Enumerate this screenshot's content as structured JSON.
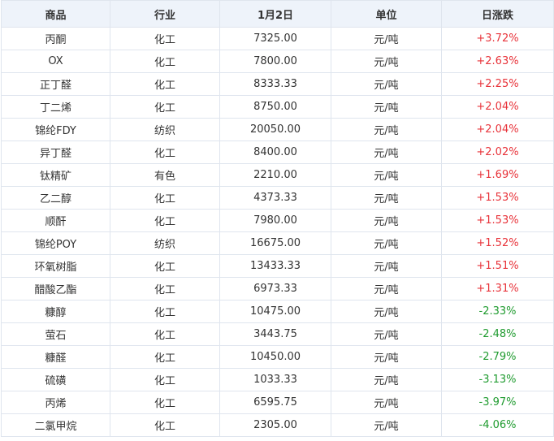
{
  "table": {
    "header": [
      "商品",
      "行业",
      "1月2日",
      "单位",
      "日涨跌"
    ],
    "rows": [
      [
        "丙酮",
        "化工",
        "7325.00",
        "元/吨",
        "+3.72%"
      ],
      [
        "OX",
        "化工",
        "7800.00",
        "元/吨",
        "+2.63%"
      ],
      [
        "正丁醛",
        "化工",
        "8333.33",
        "元/吨",
        "+2.25%"
      ],
      [
        "丁二烯",
        "化工",
        "8750.00",
        "元/吨",
        "+2.04%"
      ],
      [
        "锦纶FDY",
        "纺织",
        "20050.00",
        "元/吨",
        "+2.04%"
      ],
      [
        "异丁醛",
        "化工",
        "8400.00",
        "元/吨",
        "+2.02%"
      ],
      [
        "钛精矿",
        "有色",
        "2210.00",
        "元/吨",
        "+1.69%"
      ],
      [
        "乙二醇",
        "化工",
        "4373.33",
        "元/吨",
        "+1.53%"
      ],
      [
        "顺酐",
        "化工",
        "7980.00",
        "元/吨",
        "+1.53%"
      ],
      [
        "锦纶POY",
        "纺织",
        "16675.00",
        "元/吨",
        "+1.52%"
      ],
      [
        "环氧树脂",
        "化工",
        "13433.33",
        "元/吨",
        "+1.51%"
      ],
      [
        "醋酸乙酯",
        "化工",
        "6973.33",
        "元/吨",
        "+1.31%"
      ],
      [
        "糠醇",
        "化工",
        "10475.00",
        "元/吨",
        "-2.33%"
      ],
      [
        "萤石",
        "化工",
        "3443.75",
        "元/吨",
        "-2.48%"
      ],
      [
        "糠醛",
        "化工",
        "10450.00",
        "元/吨",
        "-2.79%"
      ],
      [
        "硫磺",
        "化工",
        "1033.33",
        "元/吨",
        "-3.13%"
      ],
      [
        "丙烯",
        "化工",
        "6595.75",
        "元/吨",
        "-3.97%"
      ],
      [
        "二氯甲烷",
        "化工",
        "2305.00",
        "元/吨",
        "-4.06%"
      ]
    ]
  }
}
